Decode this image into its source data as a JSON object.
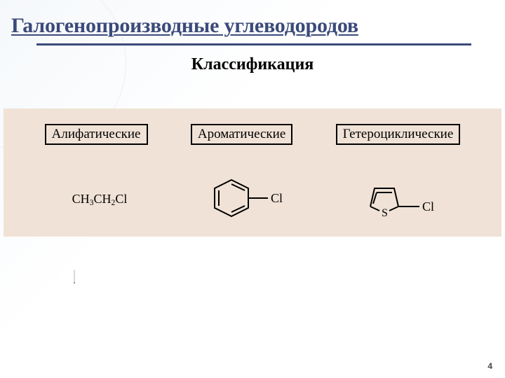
{
  "title": "Галогенопроизводные углеводородов",
  "subtitle": "Классификация",
  "page_number": "4",
  "panel_bg": "#f0e2d6",
  "border_color": "#000000",
  "cat1": "Алифатические",
  "cat2": "Ароматические",
  "cat3": "Гетероциклические",
  "formula1_html": "CH<sub>3</sub>CH<sub>2</sub>Cl",
  "cl_label": "Cl",
  "s_label": "S"
}
